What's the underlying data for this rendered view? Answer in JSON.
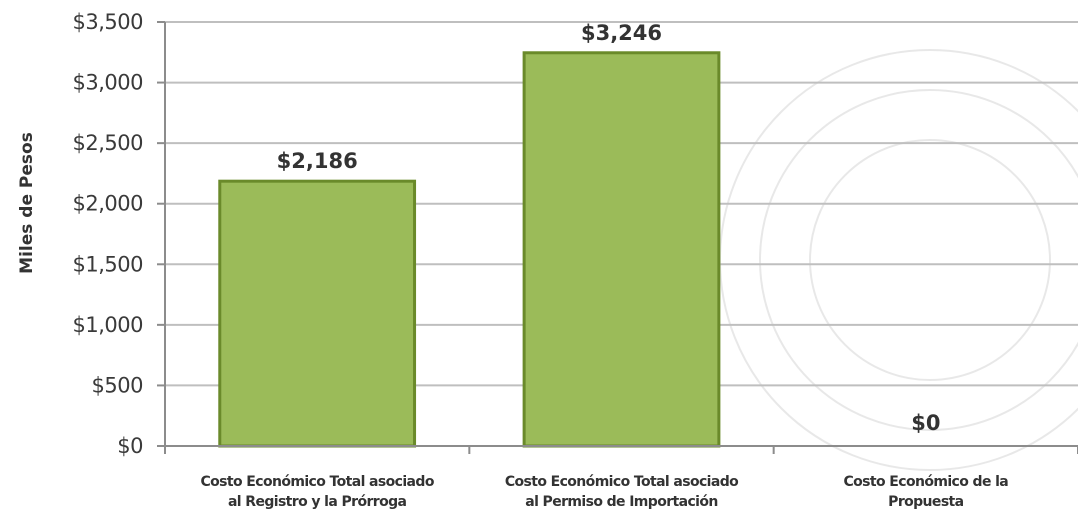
{
  "chart_data": {
    "type": "bar",
    "categories": [
      [
        "Costo Económico Total asociado",
        "al Registro y la Prórroga"
      ],
      [
        "Costo Económico Total asociado",
        "al Permiso de Importación"
      ],
      [
        "Costo Económico de la",
        "Propuesta"
      ]
    ],
    "values": [
      2186,
      3246,
      0
    ],
    "data_labels": [
      "$2,186",
      "$3,246",
      "$0"
    ],
    "ylabel": "Miles de Pesos",
    "ylim": [
      0,
      3500
    ],
    "yticks": [
      0,
      500,
      1000,
      1500,
      2000,
      2500,
      3000,
      3500
    ],
    "ytick_labels": [
      "$0",
      "$500",
      "$1,000",
      "$1,500",
      "$2,000",
      "$2,500",
      "$3,000",
      "$3,500"
    ],
    "grid": true,
    "legend": "none",
    "colors": {
      "bar_fill": "#9bbb59",
      "bar_stroke": "#6a8a2a",
      "grid": "#bfbfbf",
      "axis": "#8c8c8c"
    }
  }
}
